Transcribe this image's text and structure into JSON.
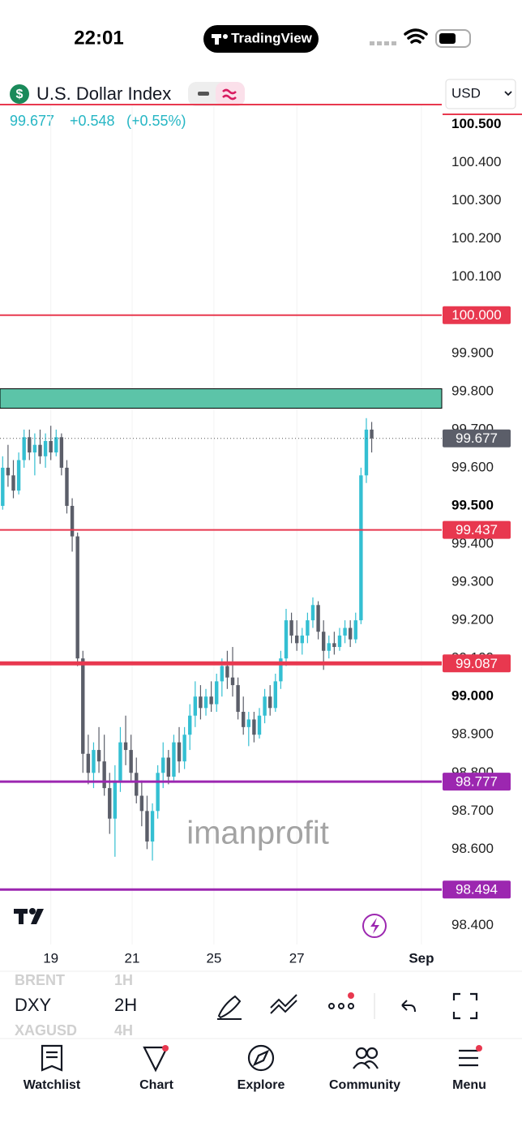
{
  "status_bar": {
    "time": "22:01",
    "app": "TradingView"
  },
  "symbol": {
    "icon": "$",
    "name": "U.S. Dollar Index",
    "price": "99.677",
    "change": "+0.548",
    "change_pct": "(+0.55%)",
    "currency": "USD"
  },
  "chart_data": {
    "type": "candlestick",
    "watermark": "imanprofit",
    "up_color": "#34bfd2",
    "down_color": "#5b5e69",
    "open": [
      99.5,
      99.6,
      99.58,
      99.54,
      99.62,
      99.68,
      99.64,
      99.66,
      99.63,
      99.67,
      99.64,
      99.68,
      99.6,
      99.5,
      99.42,
      99.1,
      98.85,
      98.8,
      98.86,
      98.83,
      98.76,
      98.68,
      98.78,
      98.88,
      98.86,
      98.8,
      98.74,
      98.7,
      98.62,
      98.7,
      98.8,
      98.84,
      98.79,
      98.88,
      98.83,
      98.9,
      98.95,
      99.0,
      98.97,
      99.0,
      98.98,
      99.04,
      99.08,
      99.05,
      99.03,
      98.96,
      98.92,
      98.94,
      98.9,
      98.95,
      99.0,
      98.97,
      99.04,
      99.1,
      99.2,
      99.16,
      99.14,
      99.16,
      99.2,
      99.24,
      99.17,
      99.12,
      99.14,
      99.13,
      99.16,
      99.18,
      99.15,
      99.2,
      99.58,
      99.7
    ],
    "high": [
      99.63,
      99.66,
      99.62,
      99.64,
      99.7,
      99.7,
      99.69,
      99.7,
      99.69,
      99.71,
      99.7,
      99.69,
      99.62,
      99.52,
      99.43,
      99.12,
      98.9,
      98.88,
      98.92,
      98.9,
      98.8,
      98.82,
      98.92,
      98.95,
      98.9,
      98.84,
      98.78,
      98.74,
      98.72,
      98.82,
      98.88,
      98.86,
      98.9,
      98.92,
      98.92,
      98.98,
      99.04,
      99.03,
      99.02,
      99.04,
      99.06,
      99.1,
      99.12,
      99.13,
      99.05,
      99.0,
      98.96,
      98.96,
      98.97,
      99.02,
      99.03,
      99.06,
      99.12,
      99.23,
      99.22,
      99.2,
      99.18,
      99.22,
      99.26,
      99.25,
      99.2,
      99.16,
      99.17,
      99.18,
      99.2,
      99.2,
      99.22,
      99.6,
      99.73,
      99.72
    ],
    "low": [
      99.49,
      99.55,
      99.52,
      99.53,
      99.6,
      99.62,
      99.58,
      99.61,
      99.6,
      99.62,
      99.63,
      99.58,
      99.48,
      99.38,
      99.08,
      98.8,
      98.77,
      98.76,
      98.8,
      98.74,
      98.64,
      98.58,
      98.75,
      98.82,
      98.78,
      98.72,
      98.66,
      98.6,
      98.57,
      98.68,
      98.76,
      98.77,
      98.78,
      98.8,
      98.81,
      98.86,
      98.92,
      98.94,
      98.95,
      98.96,
      98.96,
      99.0,
      99.02,
      99.0,
      98.94,
      98.9,
      98.87,
      98.88,
      98.89,
      98.93,
      98.95,
      98.96,
      99.02,
      99.08,
      99.14,
      99.12,
      99.11,
      99.14,
      99.18,
      99.15,
      99.07,
      99.1,
      99.11,
      99.12,
      99.14,
      99.13,
      99.14,
      99.19,
      99.56,
      99.64
    ],
    "close": [
      99.6,
      99.58,
      99.54,
      99.62,
      99.68,
      99.64,
      99.66,
      99.63,
      99.67,
      99.64,
      99.68,
      99.6,
      99.5,
      99.42,
      99.1,
      98.85,
      98.8,
      98.86,
      98.83,
      98.76,
      98.68,
      98.78,
      98.88,
      98.86,
      98.8,
      98.74,
      98.7,
      98.62,
      98.7,
      98.8,
      98.84,
      98.79,
      98.88,
      98.83,
      98.9,
      98.95,
      99.0,
      98.97,
      99.0,
      98.98,
      99.04,
      99.08,
      99.05,
      99.03,
      98.96,
      98.92,
      98.94,
      98.9,
      98.95,
      99.0,
      98.97,
      99.04,
      99.1,
      99.2,
      99.16,
      99.14,
      99.16,
      99.2,
      99.24,
      99.17,
      99.12,
      99.14,
      99.13,
      99.16,
      99.18,
      99.15,
      99.2,
      99.58,
      99.7,
      99.677
    ],
    "xlim": [
      -0.5,
      82.1
    ],
    "xticks": [
      {
        "value": 9,
        "label": "19"
      },
      {
        "value": 24.2,
        "label": "21"
      },
      {
        "value": 39.5,
        "label": "25"
      },
      {
        "value": 55,
        "label": "27"
      },
      {
        "value": 78.3,
        "label": "Sep"
      }
    ],
    "ylim": [
      98.35,
      100.55
    ],
    "yticks": [
      {
        "value": 100.5,
        "label": "100.500"
      },
      {
        "value": 100.4,
        "label": "100.400"
      },
      {
        "value": 100.3,
        "label": "100.300"
      },
      {
        "value": 100.2,
        "label": "100.200"
      },
      {
        "value": 100.1,
        "label": "100.100"
      },
      {
        "value": 99.9,
        "label": "99.900"
      },
      {
        "value": 99.8,
        "label": "99.800"
      },
      {
        "value": 99.7,
        "label": "99.700"
      },
      {
        "value": 99.6,
        "label": "99.600"
      },
      {
        "value": 99.5,
        "label": "99.500"
      },
      {
        "value": 99.4,
        "label": "99.400"
      },
      {
        "value": 99.3,
        "label": "99.300"
      },
      {
        "value": 99.2,
        "label": "99.200"
      },
      {
        "value": 99.1,
        "label": "99.100"
      },
      {
        "value": 99,
        "label": "99.000"
      },
      {
        "value": 98.9,
        "label": "98.900"
      },
      {
        "value": 98.8,
        "label": "98.800"
      },
      {
        "value": 98.7,
        "label": "98.700"
      },
      {
        "value": 98.6,
        "label": "98.600"
      },
      {
        "value": 98.4,
        "label": "98.400"
      }
    ],
    "zone": {
      "low": 99.756,
      "high": 99.807,
      "color": "#5cc4a8"
    },
    "levels": [
      {
        "value": 100,
        "label": "100.000",
        "color": "#e8384f",
        "width": 2
      },
      {
        "value": 99.437,
        "label": "99.437",
        "color": "#e8384f",
        "width": 2
      },
      {
        "value": 99.087,
        "label": "99.087",
        "color": "#e8384f",
        "width": 5
      },
      {
        "value": 98.777,
        "label": "98.777",
        "color": "#9c27b0",
        "width": 3
      },
      {
        "value": 98.494,
        "label": "98.494",
        "color": "#9c27b0",
        "width": 3
      }
    ],
    "last_price": {
      "value": 99.677,
      "label": "99.677",
      "color": "#5b5e69"
    }
  },
  "toolbar": {
    "symbols": [
      "BRENT",
      "DXY",
      "XAGUSD"
    ],
    "intervals": [
      "1H",
      "2H",
      "4H"
    ]
  },
  "nav": [
    "Watchlist",
    "Chart",
    "Explore",
    "Community",
    "Menu"
  ]
}
